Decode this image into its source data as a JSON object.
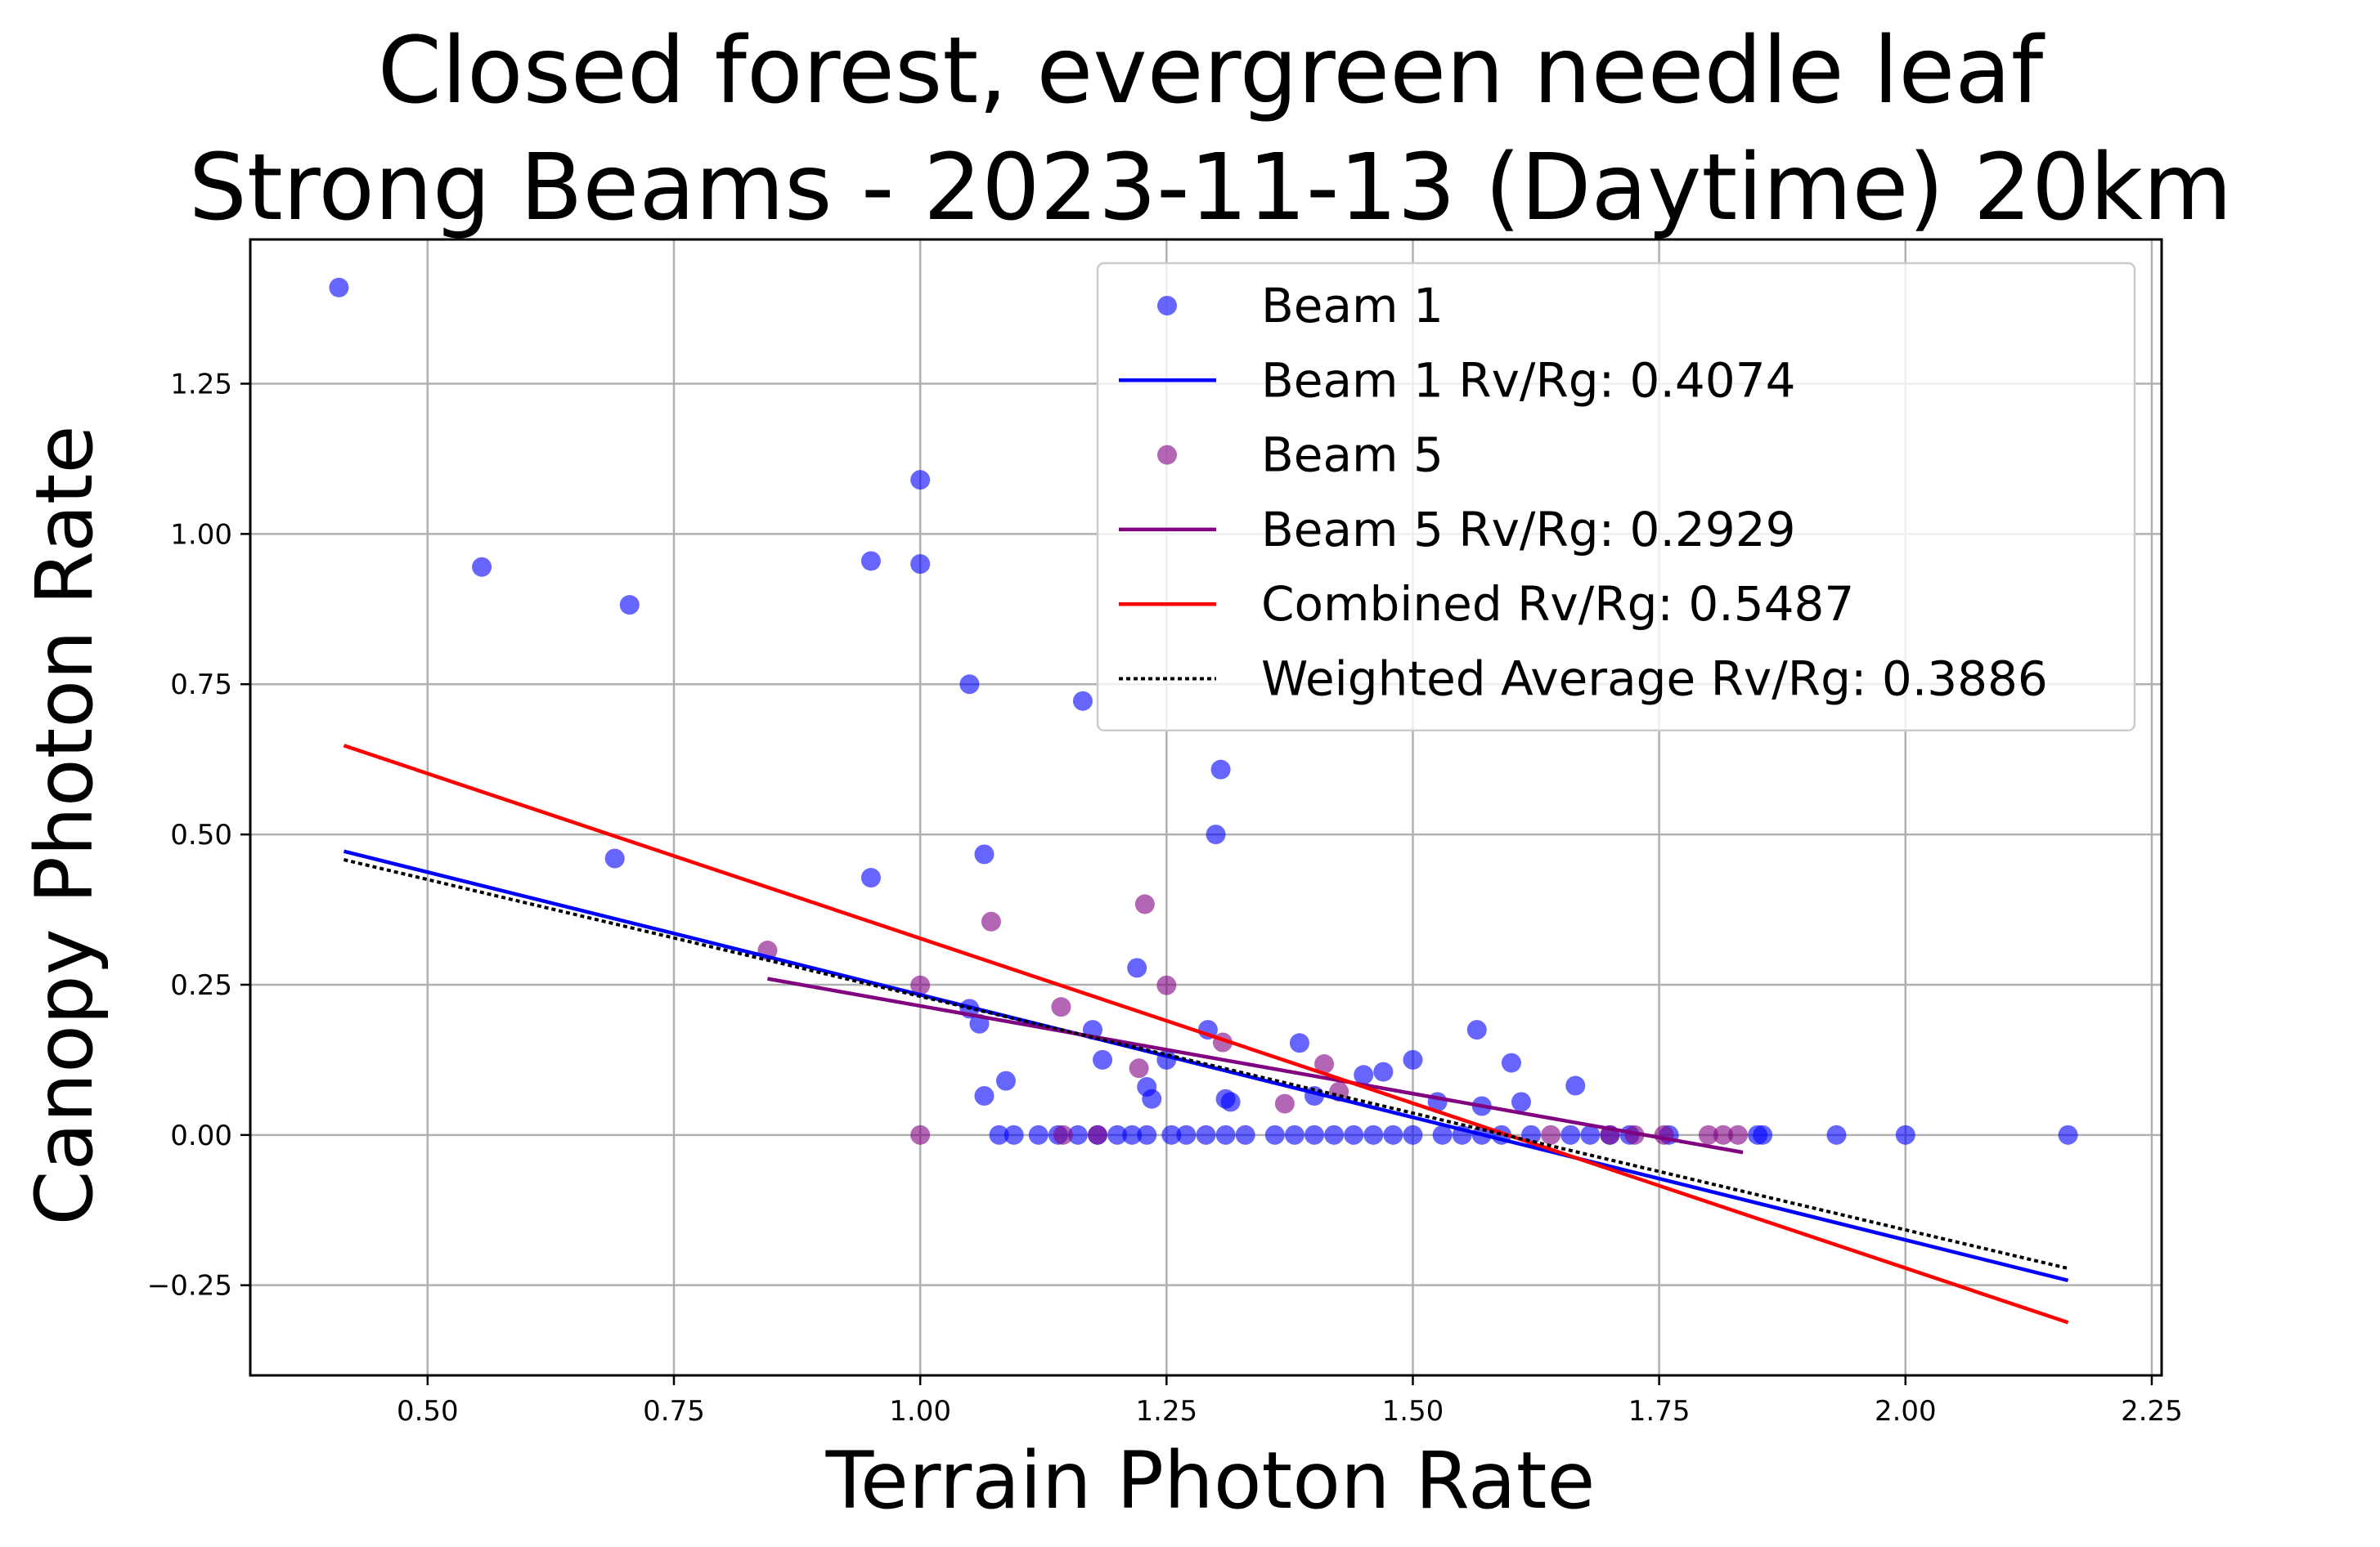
{
  "chart_data": {
    "type": "scatter",
    "title_lines": [
      "Closed forest, evergreen needle leaf",
      "Strong Beams - 2023-11-13 (Daytime) 20km"
    ],
    "xlabel": "Terrain Photon Rate",
    "ylabel": "Canopy Photon Rate",
    "xlim": [
      0.32,
      2.26
    ],
    "ylim": [
      -0.4,
      1.49
    ],
    "x_ticks": [
      0.5,
      0.75,
      1.0,
      1.25,
      1.5,
      1.75,
      2.0,
      2.25
    ],
    "x_tick_labels": [
      "0.50",
      "0.75",
      "1.00",
      "1.25",
      "1.50",
      "1.75",
      "2.00",
      "2.25"
    ],
    "y_ticks": [
      -0.25,
      0.0,
      0.25,
      0.5,
      0.75,
      1.0,
      1.25
    ],
    "y_tick_labels": [
      "−0.25",
      "0.00",
      "0.25",
      "0.50",
      "0.75",
      "1.00",
      "1.25"
    ],
    "grid": true,
    "legend_position": "top-right",
    "series": [
      {
        "name": "Beam 1",
        "kind": "scatter",
        "color": "#0000ff",
        "points": [
          [
            0.41,
            1.41
          ],
          [
            0.555,
            0.945
          ],
          [
            0.705,
            0.882
          ],
          [
            0.69,
            0.46
          ],
          [
            0.95,
            0.955
          ],
          [
            0.95,
            0.428
          ],
          [
            1.0,
            1.09
          ],
          [
            1.0,
            0.95
          ],
          [
            1.05,
            0.75
          ],
          [
            1.065,
            0.467
          ],
          [
            1.165,
            0.722
          ],
          [
            1.305,
            0.608
          ],
          [
            1.3,
            0.5
          ],
          [
            1.05,
            0.21
          ],
          [
            1.06,
            0.185
          ],
          [
            1.065,
            0.065
          ],
          [
            1.087,
            0.09
          ],
          [
            1.175,
            0.175
          ],
          [
            1.185,
            0.125
          ],
          [
            1.22,
            0.278
          ],
          [
            1.23,
            0.08
          ],
          [
            1.235,
            0.06
          ],
          [
            1.25,
            0.125
          ],
          [
            1.292,
            0.175
          ],
          [
            1.31,
            0.06
          ],
          [
            1.315,
            0.055
          ],
          [
            1.385,
            0.153
          ],
          [
            1.4,
            0.065
          ],
          [
            1.45,
            0.1
          ],
          [
            1.47,
            0.105
          ],
          [
            1.5,
            0.125
          ],
          [
            1.525,
            0.055
          ],
          [
            1.565,
            0.175
          ],
          [
            1.57,
            0.048
          ],
          [
            1.6,
            0.12
          ],
          [
            1.61,
            0.055
          ],
          [
            1.665,
            0.082
          ],
          [
            1.08,
            0.0
          ],
          [
            1.095,
            0.0
          ],
          [
            1.12,
            0.0
          ],
          [
            1.14,
            0.0
          ],
          [
            1.16,
            0.0
          ],
          [
            1.18,
            0.0
          ],
          [
            1.2,
            0.0
          ],
          [
            1.215,
            0.0
          ],
          [
            1.23,
            0.0
          ],
          [
            1.255,
            0.0
          ],
          [
            1.27,
            0.0
          ],
          [
            1.29,
            0.0
          ],
          [
            1.31,
            0.0
          ],
          [
            1.33,
            0.0
          ],
          [
            1.36,
            0.0
          ],
          [
            1.38,
            0.0
          ],
          [
            1.4,
            0.0
          ],
          [
            1.42,
            0.0
          ],
          [
            1.44,
            0.0
          ],
          [
            1.46,
            0.0
          ],
          [
            1.48,
            0.0
          ],
          [
            1.5,
            0.0
          ],
          [
            1.53,
            0.0
          ],
          [
            1.55,
            0.0
          ],
          [
            1.57,
            0.0
          ],
          [
            1.59,
            0.0
          ],
          [
            1.62,
            0.0
          ],
          [
            1.66,
            0.0
          ],
          [
            1.68,
            0.0
          ],
          [
            1.7,
            0.0
          ],
          [
            1.72,
            0.0
          ],
          [
            1.76,
            0.0
          ],
          [
            1.85,
            0.0
          ],
          [
            1.855,
            0.0
          ],
          [
            1.93,
            0.0
          ],
          [
            2.0,
            0.0
          ],
          [
            2.165,
            0.0
          ]
        ]
      },
      {
        "name": "Beam 1 Rv/Rg: 0.4074",
        "kind": "line",
        "color": "#0000ff",
        "x": [
          0.415,
          2.165
        ],
        "y": [
          0.472,
          -0.242
        ]
      },
      {
        "name": "Beam 5",
        "kind": "scatter",
        "color": "#800080",
        "points": [
          [
            0.845,
            0.307
          ],
          [
            1.0,
            0.249
          ],
          [
            1.072,
            0.355
          ],
          [
            1.143,
            0.213
          ],
          [
            1.228,
            0.384
          ],
          [
            1.222,
            0.111
          ],
          [
            1.25,
            0.249
          ],
          [
            1.307,
            0.154
          ],
          [
            1.37,
            0.052
          ],
          [
            1.41,
            0.118
          ],
          [
            1.425,
            0.072
          ],
          [
            1.0,
            0.0
          ],
          [
            1.145,
            0.0
          ],
          [
            1.18,
            0.0
          ],
          [
            1.64,
            0.0
          ],
          [
            1.7,
            0.0
          ],
          [
            1.725,
            0.0
          ],
          [
            1.755,
            0.0
          ],
          [
            1.8,
            0.0
          ],
          [
            1.815,
            0.0
          ],
          [
            1.83,
            0.0
          ]
        ]
      },
      {
        "name": "Beam 5 Rv/Rg: 0.2929",
        "kind": "line",
        "color": "#800080",
        "x": [
          0.845,
          1.835
        ],
        "y": [
          0.26,
          -0.029
        ]
      },
      {
        "name": "Combined Rv/Rg: 0.5487",
        "kind": "line",
        "color": "#ff0000",
        "x": [
          0.415,
          2.165
        ],
        "y": [
          0.648,
          -0.312
        ]
      },
      {
        "name": "Weighted Average Rv/Rg: 0.3886",
        "kind": "line",
        "style": "dotted",
        "color": "#000000",
        "x": [
          0.415,
          2.165
        ],
        "y": [
          0.458,
          -0.222
        ]
      }
    ]
  }
}
